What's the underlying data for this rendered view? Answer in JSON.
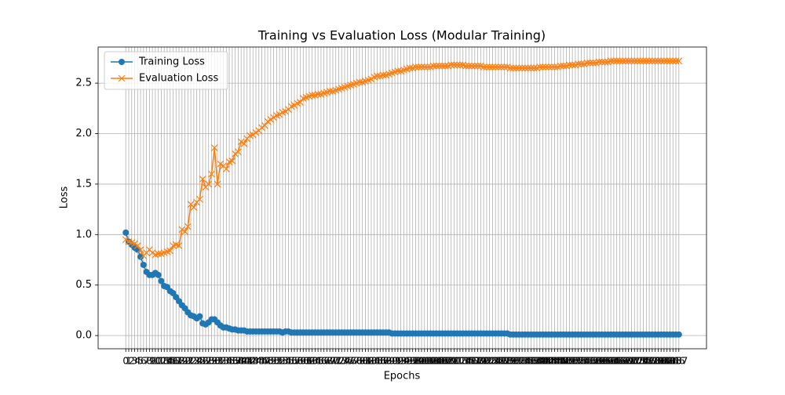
{
  "chart_data": {
    "type": "line",
    "title": "Training vs Evaluation Loss (Modular Training)",
    "xlabel": "Epochs",
    "ylabel": "Loss",
    "x": [
      0,
      1,
      2,
      3,
      4,
      5,
      6,
      7,
      8,
      9,
      10,
      11,
      12,
      13,
      14,
      15,
      16,
      17,
      18,
      19,
      20,
      21,
      22,
      23,
      24,
      25,
      26,
      27,
      28,
      29,
      30,
      31,
      32,
      33,
      34,
      35,
      36,
      37,
      38,
      39,
      40,
      41,
      42,
      43,
      44,
      45,
      46,
      47,
      48,
      49,
      50,
      51,
      52,
      53,
      54,
      55,
      56,
      57,
      58,
      59,
      60,
      61,
      62,
      63,
      64,
      65,
      66,
      67,
      68,
      69,
      70,
      71,
      72,
      73,
      74,
      75,
      76,
      77,
      78,
      79,
      80,
      81,
      82,
      83,
      84,
      85,
      86,
      87,
      88,
      89,
      90,
      91,
      92,
      93,
      94,
      95,
      96,
      97,
      98,
      99,
      100,
      101,
      102,
      103,
      104,
      105,
      106,
      107,
      108,
      109,
      110,
      111,
      112,
      113,
      114,
      115,
      116,
      117,
      118,
      119,
      120,
      121,
      122,
      123,
      124,
      125,
      126,
      127,
      128,
      129,
      130,
      131,
      132,
      133,
      134,
      135,
      136,
      137,
      138,
      139,
      140,
      141,
      142,
      143,
      144,
      145,
      146,
      147,
      148,
      149,
      150,
      151,
      152,
      153,
      154,
      155,
      156,
      157,
      158,
      159,
      160,
      161,
      162,
      163,
      164,
      165,
      166,
      167,
      168,
      169,
      170,
      171,
      172,
      173,
      174,
      175,
      176,
      177,
      178,
      179,
      180,
      181,
      182,
      183,
      184,
      185,
      186,
      187
    ],
    "series": [
      {
        "name": "Training Loss",
        "color": "#1f77b4",
        "marker": "o",
        "values": [
          1.02,
          0.93,
          0.9,
          0.87,
          0.85,
          0.78,
          0.7,
          0.63,
          0.6,
          0.6,
          0.62,
          0.6,
          0.54,
          0.49,
          0.48,
          0.44,
          0.42,
          0.38,
          0.34,
          0.3,
          0.27,
          0.23,
          0.2,
          0.19,
          0.17,
          0.19,
          0.12,
          0.11,
          0.13,
          0.16,
          0.16,
          0.13,
          0.1,
          0.08,
          0.08,
          0.07,
          0.06,
          0.06,
          0.05,
          0.05,
          0.05,
          0.04,
          0.04,
          0.04,
          0.04,
          0.04,
          0.04,
          0.04,
          0.04,
          0.04,
          0.04,
          0.04,
          0.04,
          0.03,
          0.04,
          0.04,
          0.03,
          0.03,
          0.03,
          0.03,
          0.03,
          0.03,
          0.03,
          0.03,
          0.03,
          0.03,
          0.03,
          0.03,
          0.03,
          0.03,
          0.03,
          0.03,
          0.03,
          0.03,
          0.03,
          0.03,
          0.03,
          0.03,
          0.03,
          0.03,
          0.03,
          0.03,
          0.03,
          0.03,
          0.03,
          0.03,
          0.03,
          0.03,
          0.03,
          0.03,
          0.02,
          0.02,
          0.02,
          0.02,
          0.02,
          0.02,
          0.02,
          0.02,
          0.02,
          0.02,
          0.02,
          0.02,
          0.02,
          0.02,
          0.02,
          0.02,
          0.02,
          0.02,
          0.02,
          0.02,
          0.02,
          0.02,
          0.02,
          0.02,
          0.02,
          0.02,
          0.02,
          0.02,
          0.02,
          0.02,
          0.02,
          0.02,
          0.02,
          0.02,
          0.02,
          0.02,
          0.02,
          0.02,
          0.02,
          0.02,
          0.01,
          0.01,
          0.01,
          0.01,
          0.01,
          0.01,
          0.01,
          0.01,
          0.01,
          0.01,
          0.01,
          0.01,
          0.01,
          0.01,
          0.01,
          0.01,
          0.01,
          0.01,
          0.01,
          0.01,
          0.01,
          0.01,
          0.01,
          0.01,
          0.01,
          0.01,
          0.01,
          0.01,
          0.01,
          0.01,
          0.01,
          0.01,
          0.01,
          0.01,
          0.01,
          0.01,
          0.01,
          0.01,
          0.01,
          0.01,
          0.01,
          0.01,
          0.01,
          0.01,
          0.01,
          0.01,
          0.01,
          0.01,
          0.01,
          0.01,
          0.01,
          0.01,
          0.01,
          0.01,
          0.01,
          0.01,
          0.01,
          0.01
        ]
      },
      {
        "name": "Evaluation Loss",
        "color": "#ff7f0e",
        "marker": "x",
        "values": [
          0.95,
          0.93,
          0.92,
          0.91,
          0.89,
          0.85,
          0.79,
          0.82,
          0.85,
          0.82,
          0.8,
          0.81,
          0.81,
          0.82,
          0.83,
          0.84,
          0.89,
          0.9,
          0.89,
          1.05,
          1.03,
          1.08,
          1.3,
          1.27,
          1.32,
          1.35,
          1.55,
          1.47,
          1.5,
          1.6,
          1.86,
          1.5,
          1.7,
          1.68,
          1.65,
          1.72,
          1.73,
          1.8,
          1.82,
          1.92,
          1.9,
          1.95,
          1.98,
          1.99,
          2.01,
          2.03,
          2.06,
          2.08,
          2.12,
          2.14,
          2.16,
          2.18,
          2.19,
          2.21,
          2.22,
          2.24,
          2.27,
          2.28,
          2.3,
          2.31,
          2.35,
          2.36,
          2.37,
          2.38,
          2.38,
          2.39,
          2.39,
          2.4,
          2.41,
          2.42,
          2.42,
          2.43,
          2.44,
          2.45,
          2.46,
          2.47,
          2.48,
          2.49,
          2.5,
          2.51,
          2.51,
          2.52,
          2.53,
          2.54,
          2.56,
          2.57,
          2.57,
          2.58,
          2.58,
          2.59,
          2.6,
          2.61,
          2.62,
          2.62,
          2.63,
          2.64,
          2.65,
          2.65,
          2.66,
          2.66,
          2.66,
          2.66,
          2.66,
          2.66,
          2.67,
          2.67,
          2.67,
          2.67,
          2.67,
          2.67,
          2.68,
          2.68,
          2.68,
          2.68,
          2.68,
          2.67,
          2.67,
          2.67,
          2.67,
          2.67,
          2.67,
          2.66,
          2.66,
          2.66,
          2.66,
          2.66,
          2.66,
          2.66,
          2.66,
          2.66,
          2.65,
          2.65,
          2.65,
          2.65,
          2.65,
          2.65,
          2.65,
          2.65,
          2.65,
          2.65,
          2.66,
          2.66,
          2.66,
          2.66,
          2.66,
          2.66,
          2.66,
          2.67,
          2.67,
          2.67,
          2.68,
          2.68,
          2.68,
          2.69,
          2.69,
          2.69,
          2.7,
          2.7,
          2.7,
          2.7,
          2.71,
          2.71,
          2.71,
          2.71,
          2.72,
          2.72,
          2.72,
          2.72,
          2.72,
          2.72,
          2.72,
          2.72,
          2.72,
          2.72,
          2.72,
          2.72,
          2.72,
          2.72,
          2.72,
          2.72,
          2.72,
          2.72,
          2.72,
          2.72,
          2.72,
          2.72,
          2.72,
          2.72
        ]
      }
    ],
    "xlim": [
      -9.35,
      196.35
    ],
    "xticks": [
      0,
      1,
      2,
      3,
      4,
      5,
      6,
      7,
      8,
      9,
      10,
      11,
      12,
      13,
      14,
      15,
      16,
      17,
      18,
      19,
      20,
      21,
      22,
      23,
      24,
      25,
      26,
      27,
      28,
      29,
      30,
      31,
      32,
      33,
      34,
      35,
      36,
      37,
      38,
      39,
      40,
      41,
      42,
      43,
      44,
      45,
      46,
      47,
      48,
      49,
      50,
      51,
      52,
      53,
      54,
      55,
      56,
      57,
      58,
      59,
      60,
      61,
      62,
      63,
      64,
      65,
      66,
      67,
      68,
      69,
      70,
      71,
      72,
      73,
      74,
      75,
      76,
      77,
      78,
      79,
      80,
      81,
      82,
      83,
      84,
      85,
      86,
      87,
      88,
      89,
      90,
      91,
      92,
      93,
      94,
      95,
      96,
      97,
      98,
      99,
      100,
      101,
      102,
      103,
      104,
      105,
      106,
      107,
      108,
      109,
      110,
      111,
      112,
      113,
      114,
      115,
      116,
      117,
      118,
      119,
      120,
      121,
      122,
      123,
      124,
      125,
      126,
      127,
      128,
      129,
      130,
      131,
      132,
      133,
      134,
      135,
      136,
      137,
      138,
      139,
      140,
      141,
      142,
      143,
      144,
      145,
      146,
      147,
      148,
      149,
      150,
      151,
      152,
      153,
      154,
      155,
      156,
      157,
      158,
      159,
      160,
      161,
      162,
      163,
      164,
      165,
      166,
      167,
      168,
      169,
      170,
      171,
      172,
      173,
      174,
      175,
      176,
      177,
      178,
      179,
      180,
      181,
      182,
      183,
      184,
      185,
      186,
      187
    ],
    "ylim": [
      -0.131,
      2.858
    ],
    "yticks": [
      {
        "value": 0,
        "label": "0.0"
      },
      0.5,
      {
        "value": 1,
        "label": "1.0"
      },
      1.5,
      {
        "value": 2,
        "label": "2.0"
      },
      2.5
    ],
    "grid": true,
    "legend": "upper left"
  }
}
